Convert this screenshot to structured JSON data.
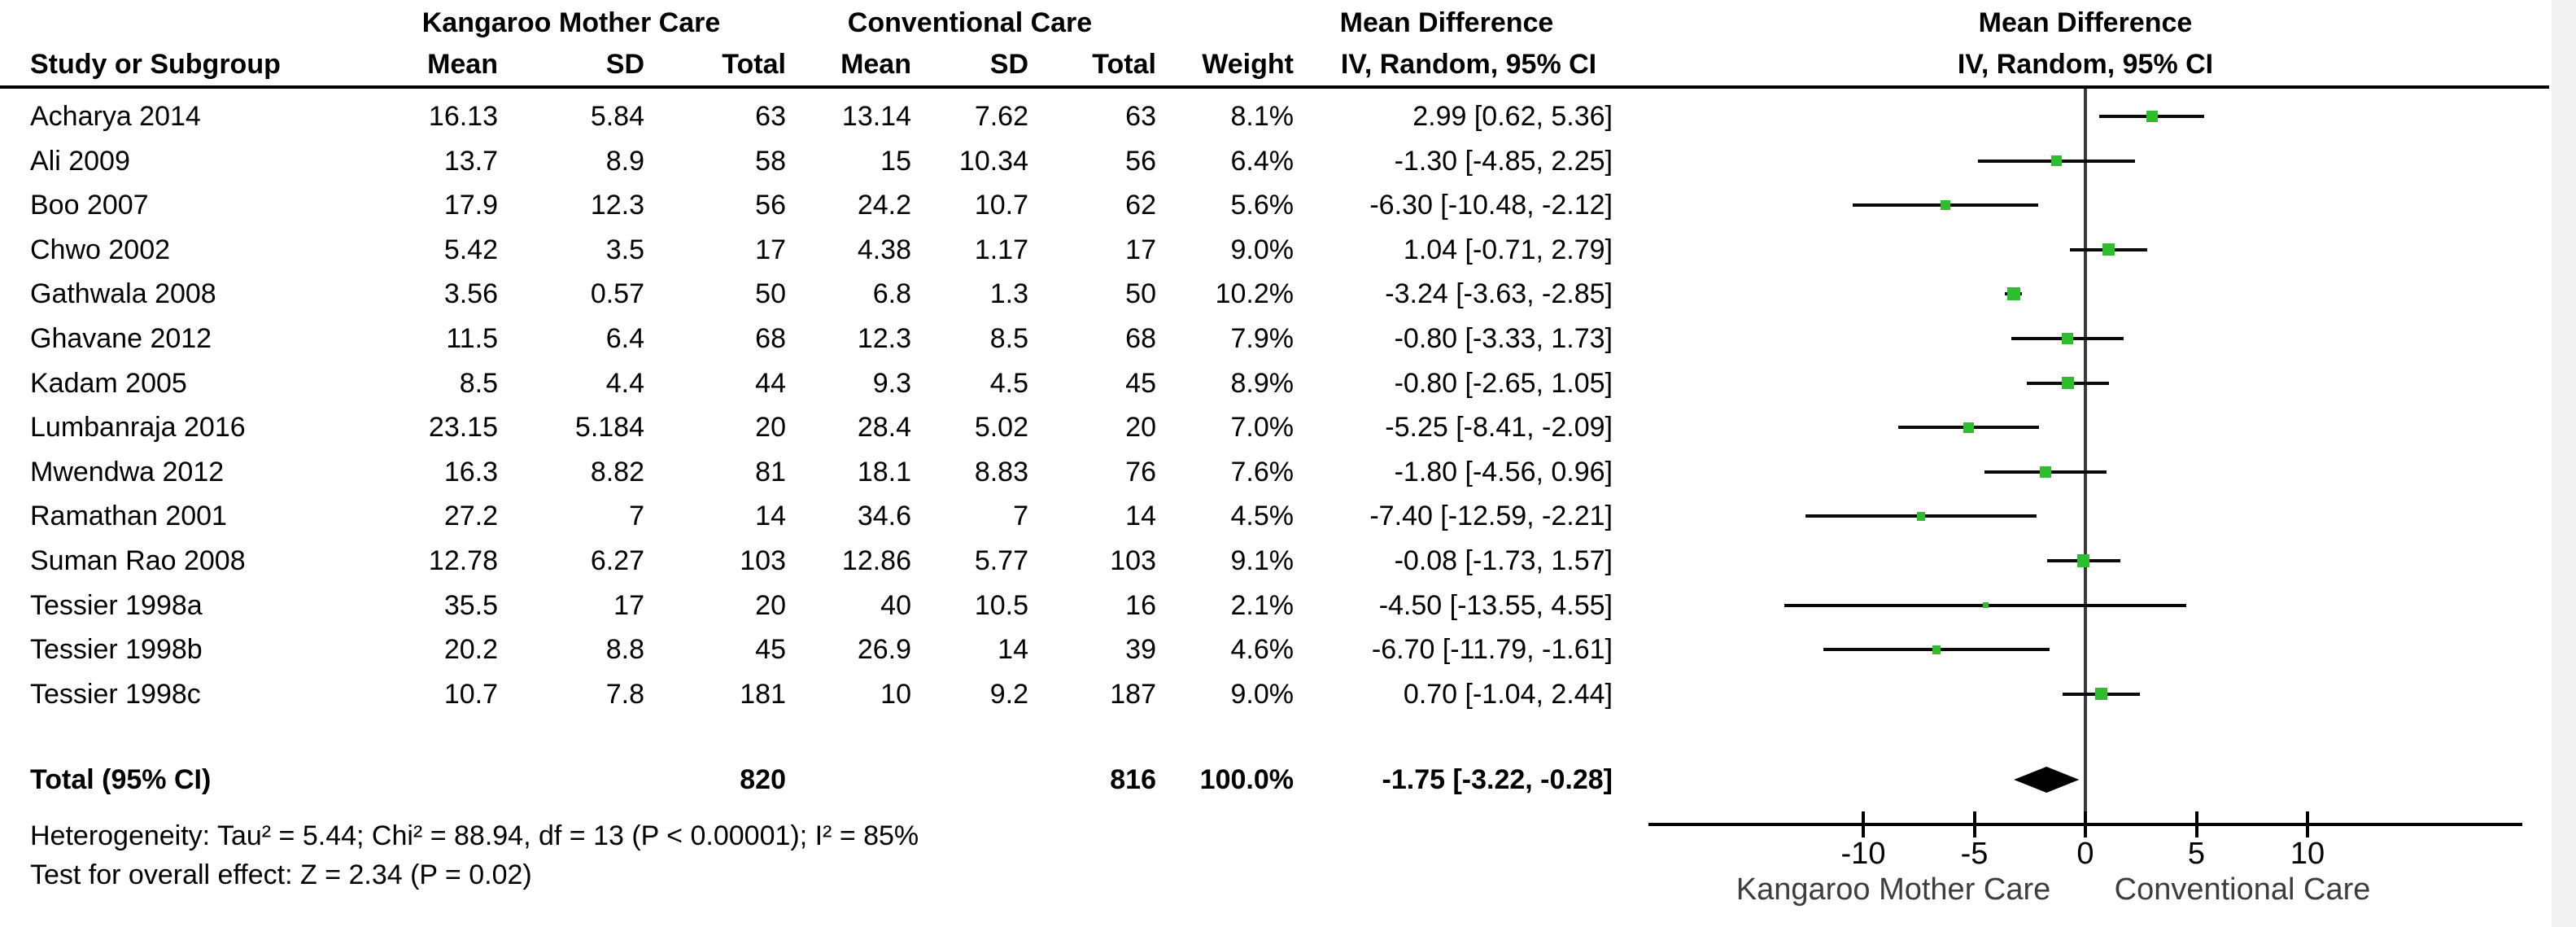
{
  "header": {
    "study_col": "Study or Subgroup",
    "group1": "Kangaroo Mother Care",
    "group2": "Conventional Care",
    "mean": "Mean",
    "sd": "SD",
    "total": "Total",
    "weight": "Weight",
    "md_title": "Mean Difference",
    "md_subtitle": "IV, Random, 95% CI"
  },
  "totals": {
    "label": "Total (95% CI)",
    "kmc_total": "820",
    "cc_total": "816",
    "weight": "100.0%",
    "ci_text": "-1.75 [-3.22, -0.28]"
  },
  "footnotes": {
    "heterogeneity": "Heterogeneity: Tau² = 5.44; Chi² = 88.94, df = 13 (P < 0.00001); I² = 85%",
    "overall_effect": "Test for overall effect: Z = 2.34 (P = 0.02)"
  },
  "chart_data": {
    "type": "forest",
    "title": "Mean Difference",
    "subtitle": "IV, Random, 95% CI",
    "xlabel_left": "Kangaroo Mother Care",
    "xlabel_right": "Conventional Care",
    "x_ticks": [
      -10,
      -5,
      0,
      5,
      10
    ],
    "xlim": [
      -19.7,
      19.7
    ],
    "zero_line": 0,
    "marker_color": "#2dbe2d",
    "studies": [
      {
        "name": "Acharya 2014",
        "kmc": {
          "mean": "16.13",
          "sd": "5.84",
          "total": "63"
        },
        "cc": {
          "mean": "13.14",
          "sd": "7.62",
          "total": "63"
        },
        "weight": "8.1%",
        "weight_pct": 8.1,
        "md": 2.99,
        "ci_low": 0.62,
        "ci_high": 5.36,
        "ci_text": "2.99 [0.62, 5.36]"
      },
      {
        "name": "Ali 2009",
        "kmc": {
          "mean": "13.7",
          "sd": "8.9",
          "total": "58"
        },
        "cc": {
          "mean": "15",
          "sd": "10.34",
          "total": "56"
        },
        "weight": "6.4%",
        "weight_pct": 6.4,
        "md": -1.3,
        "ci_low": -4.85,
        "ci_high": 2.25,
        "ci_text": "-1.30 [-4.85, 2.25]"
      },
      {
        "name": "Boo 2007",
        "kmc": {
          "mean": "17.9",
          "sd": "12.3",
          "total": "56"
        },
        "cc": {
          "mean": "24.2",
          "sd": "10.7",
          "total": "62"
        },
        "weight": "5.6%",
        "weight_pct": 5.6,
        "md": -6.3,
        "ci_low": -10.48,
        "ci_high": -2.12,
        "ci_text": "-6.30 [-10.48, -2.12]"
      },
      {
        "name": "Chwo 2002",
        "kmc": {
          "mean": "5.42",
          "sd": "3.5",
          "total": "17"
        },
        "cc": {
          "mean": "4.38",
          "sd": "1.17",
          "total": "17"
        },
        "weight": "9.0%",
        "weight_pct": 9.0,
        "md": 1.04,
        "ci_low": -0.71,
        "ci_high": 2.79,
        "ci_text": "1.04 [-0.71, 2.79]"
      },
      {
        "name": "Gathwala 2008",
        "kmc": {
          "mean": "3.56",
          "sd": "0.57",
          "total": "50"
        },
        "cc": {
          "mean": "6.8",
          "sd": "1.3",
          "total": "50"
        },
        "weight": "10.2%",
        "weight_pct": 10.2,
        "md": -3.24,
        "ci_low": -3.63,
        "ci_high": -2.85,
        "ci_text": "-3.24 [-3.63, -2.85]"
      },
      {
        "name": "Ghavane 2012",
        "kmc": {
          "mean": "11.5",
          "sd": "6.4",
          "total": "68"
        },
        "cc": {
          "mean": "12.3",
          "sd": "8.5",
          "total": "68"
        },
        "weight": "7.9%",
        "weight_pct": 7.9,
        "md": -0.8,
        "ci_low": -3.33,
        "ci_high": 1.73,
        "ci_text": "-0.80 [-3.33, 1.73]"
      },
      {
        "name": "Kadam 2005",
        "kmc": {
          "mean": "8.5",
          "sd": "4.4",
          "total": "44"
        },
        "cc": {
          "mean": "9.3",
          "sd": "4.5",
          "total": "45"
        },
        "weight": "8.9%",
        "weight_pct": 8.9,
        "md": -0.8,
        "ci_low": -2.65,
        "ci_high": 1.05,
        "ci_text": "-0.80 [-2.65, 1.05]"
      },
      {
        "name": "Lumbanraja 2016",
        "kmc": {
          "mean": "23.15",
          "sd": "5.184",
          "total": "20"
        },
        "cc": {
          "mean": "28.4",
          "sd": "5.02",
          "total": "20"
        },
        "weight": "7.0%",
        "weight_pct": 7.0,
        "md": -5.25,
        "ci_low": -8.41,
        "ci_high": -2.09,
        "ci_text": "-5.25 [-8.41, -2.09]"
      },
      {
        "name": "Mwendwa 2012",
        "kmc": {
          "mean": "16.3",
          "sd": "8.82",
          "total": "81"
        },
        "cc": {
          "mean": "18.1",
          "sd": "8.83",
          "total": "76"
        },
        "weight": "7.6%",
        "weight_pct": 7.6,
        "md": -1.8,
        "ci_low": -4.56,
        "ci_high": 0.96,
        "ci_text": "-1.80 [-4.56, 0.96]"
      },
      {
        "name": "Ramathan 2001",
        "kmc": {
          "mean": "27.2",
          "sd": "7",
          "total": "14"
        },
        "cc": {
          "mean": "34.6",
          "sd": "7",
          "total": "14"
        },
        "weight": "4.5%",
        "weight_pct": 4.5,
        "md": -7.4,
        "ci_low": -12.59,
        "ci_high": -2.21,
        "ci_text": "-7.40 [-12.59, -2.21]"
      },
      {
        "name": "Suman Rao 2008",
        "kmc": {
          "mean": "12.78",
          "sd": "6.27",
          "total": "103"
        },
        "cc": {
          "mean": "12.86",
          "sd": "5.77",
          "total": "103"
        },
        "weight": "9.1%",
        "weight_pct": 9.1,
        "md": -0.08,
        "ci_low": -1.73,
        "ci_high": 1.57,
        "ci_text": "-0.08 [-1.73, 1.57]"
      },
      {
        "name": "Tessier 1998a",
        "kmc": {
          "mean": "35.5",
          "sd": "17",
          "total": "20"
        },
        "cc": {
          "mean": "40",
          "sd": "10.5",
          "total": "16"
        },
        "weight": "2.1%",
        "weight_pct": 2.1,
        "md": -4.5,
        "ci_low": -13.55,
        "ci_high": 4.55,
        "ci_text": "-4.50 [-13.55, 4.55]"
      },
      {
        "name": "Tessier 1998b",
        "kmc": {
          "mean": "20.2",
          "sd": "8.8",
          "total": "45"
        },
        "cc": {
          "mean": "26.9",
          "sd": "14",
          "total": "39"
        },
        "weight": "4.6%",
        "weight_pct": 4.6,
        "md": -6.7,
        "ci_low": -11.79,
        "ci_high": -1.61,
        "ci_text": "-6.70 [-11.79, -1.61]"
      },
      {
        "name": "Tessier 1998c",
        "kmc": {
          "mean": "10.7",
          "sd": "7.8",
          "total": "181"
        },
        "cc": {
          "mean": "10",
          "sd": "9.2",
          "total": "187"
        },
        "weight": "9.0%",
        "weight_pct": 9.0,
        "md": 0.7,
        "ci_low": -1.04,
        "ci_high": 2.44,
        "ci_text": "0.70 [-1.04, 2.44]"
      }
    ],
    "total": {
      "label": "Total (95% CI)",
      "md": -1.75,
      "ci_low": -3.22,
      "ci_high": -0.28,
      "weight_pct": 100.0
    }
  }
}
